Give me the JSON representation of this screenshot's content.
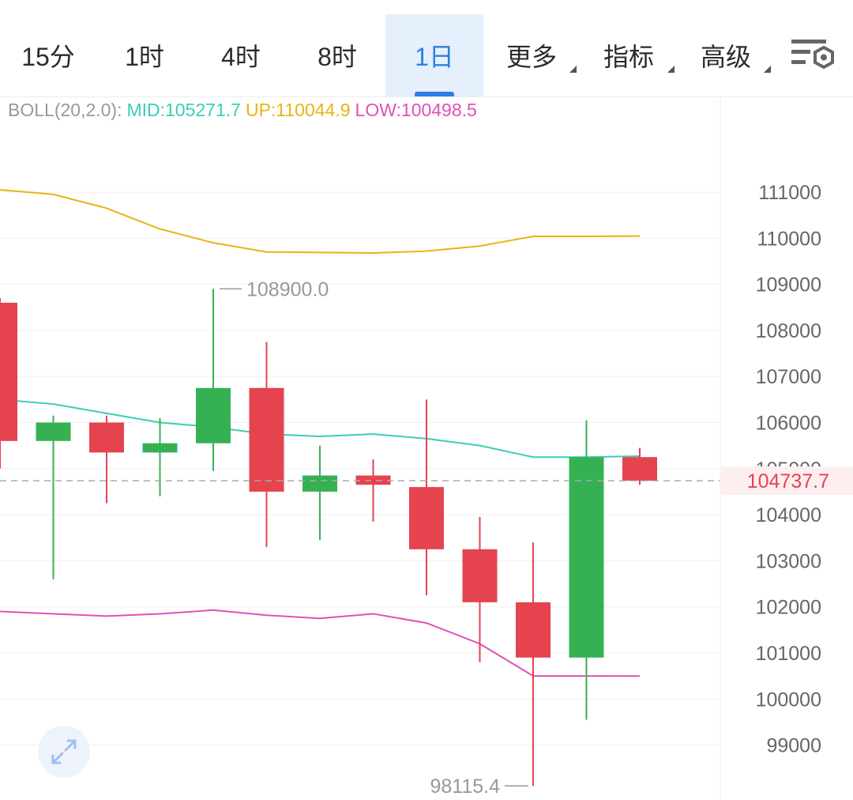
{
  "tabs": [
    {
      "label": "15分",
      "active": false,
      "caret": false
    },
    {
      "label": "1时",
      "active": false,
      "caret": false
    },
    {
      "label": "4时",
      "active": false,
      "caret": false
    },
    {
      "label": "8时",
      "active": false,
      "caret": false
    },
    {
      "label": "1日",
      "active": true,
      "caret": false
    },
    {
      "label": "更多",
      "active": false,
      "caret": true
    },
    {
      "label": "指标",
      "active": false,
      "caret": true
    },
    {
      "label": "高级",
      "active": false,
      "caret": true
    }
  ],
  "settings_icon": "chart-settings-icon",
  "expand_icon": "expand-arrows-icon",
  "legend": {
    "name": "BOLL(20,2.0):",
    "mid": "MID:105271.7",
    "up": "UP:110044.9",
    "low": "LOW:100498.5"
  },
  "colors": {
    "accent": "#2f7de1",
    "up_candle": "#35b154",
    "down_candle": "#e5434e",
    "mid_line": "#3ccdb4",
    "upper_band": "#e8b414",
    "lower_band": "#e04fb7",
    "price_tag": "#e5434e",
    "legend_label": "#999999"
  },
  "chart_data": {
    "type": "candlestick",
    "y_ticks": [
      111000,
      110000,
      109000,
      108000,
      107000,
      106000,
      105000,
      104000,
      103000,
      102000,
      101000,
      100000,
      99000
    ],
    "y_tick_labels": [
      "111000",
      "110000",
      "109000",
      "108000",
      "107000",
      "106000",
      "105000",
      "104000",
      "103000",
      "102000",
      "101000",
      "100000",
      "99000"
    ],
    "ylim": [
      97900,
      113100
    ],
    "current_price": 104737.7,
    "current_price_label": "104737.7",
    "max_label": "108900.0",
    "min_label": "98115.4",
    "candles": [
      {
        "open": 108600,
        "close": 105600,
        "high": 108700,
        "low": 105000
      },
      {
        "open": 105600,
        "close": 106000,
        "high": 106150,
        "low": 102600
      },
      {
        "open": 106000,
        "close": 105350,
        "high": 106150,
        "low": 104250
      },
      {
        "open": 105350,
        "close": 105550,
        "high": 106100,
        "low": 104400
      },
      {
        "open": 105550,
        "close": 106750,
        "high": 108900,
        "low": 104950
      },
      {
        "open": 106750,
        "close": 104500,
        "high": 107750,
        "low": 103300
      },
      {
        "open": 104500,
        "close": 104850,
        "high": 105500,
        "low": 103450
      },
      {
        "open": 104850,
        "close": 104650,
        "high": 105200,
        "low": 103850
      },
      {
        "open": 104600,
        "close": 103250,
        "high": 106500,
        "low": 102250
      },
      {
        "open": 103250,
        "close": 102100,
        "high": 103950,
        "low": 100800
      },
      {
        "open": 102100,
        "close": 100900,
        "high": 103400,
        "low": 98115.4
      },
      {
        "open": 100900,
        "close": 105250,
        "high": 106050,
        "low": 99550
      },
      {
        "open": 105250,
        "close": 104737.7,
        "high": 105450,
        "low": 104650
      }
    ],
    "boll_mid": [
      106500,
      106400,
      106200,
      106000,
      105900,
      105750,
      105700,
      105750,
      105650,
      105500,
      105250,
      105250,
      105271.7
    ],
    "boll_upper": [
      111050,
      110950,
      110650,
      110200,
      109900,
      109700,
      109690,
      109680,
      109720,
      109830,
      110040,
      110040,
      110044.9
    ],
    "boll_lower": [
      101900,
      101850,
      101800,
      101850,
      101930,
      101820,
      101750,
      101850,
      101650,
      101200,
      100500,
      100500,
      100498.5
    ]
  }
}
